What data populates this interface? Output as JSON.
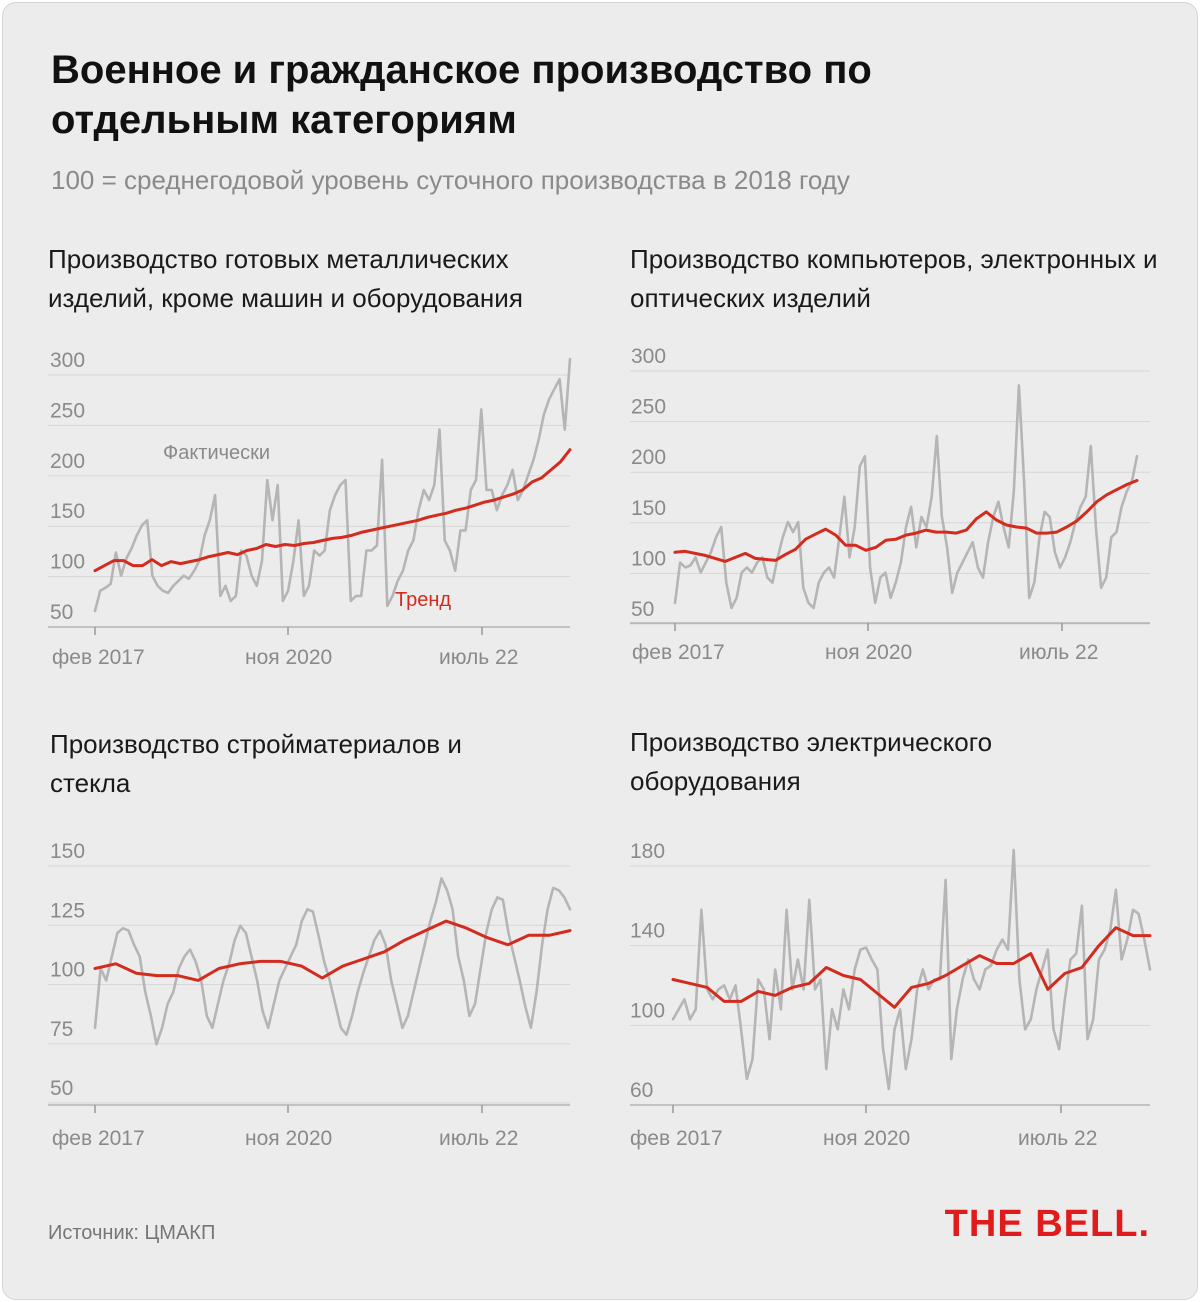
{
  "header": {
    "title": "Военное и гражданское производство по отдельным категориям",
    "subtitle": "100 = среднегодовой уровень суточного производства в 2018 году"
  },
  "source": "Источник: ЦМАКП",
  "logo": "THE BELL.",
  "colors": {
    "actual": "#b5b5b5",
    "trend": "#d32b1e",
    "grid": "#d6d6d6",
    "axis": "#999999",
    "tick": "#8a8a8a"
  },
  "chart_data": [
    {
      "type": "line",
      "title": "Производство готовых металлических изделий, кроме машин и оборудования",
      "x_ticks": [
        "фев 2017",
        "ноя 2020",
        "июль 22"
      ],
      "x_tick_index": [
        0,
        45,
        90
      ],
      "y_ticks": [
        50,
        100,
        150,
        200,
        250,
        300
      ],
      "ylim": [
        42,
        300
      ],
      "annotations": {
        "actual": "Фактически",
        "trend": "Тренд"
      },
      "series": [
        {
          "name": "Фактически",
          "values": [
            50,
            70,
            73,
            77,
            108,
            85,
            102,
            112,
            125,
            135,
            140,
            85,
            75,
            70,
            68,
            75,
            80,
            85,
            82,
            90,
            100,
            125,
            140,
            165,
            65,
            75,
            60,
            65,
            110,
            105,
            85,
            75,
            100,
            180,
            140,
            175,
            60,
            70,
            100,
            140,
            65,
            75,
            110,
            105,
            110,
            150,
            165,
            175,
            180,
            60,
            65,
            65,
            110,
            110,
            115,
            200,
            55,
            65,
            80,
            90,
            110,
            120,
            150,
            170,
            160,
            175,
            230,
            120,
            110,
            90,
            130,
            130,
            170,
            180,
            250,
            170,
            170,
            150,
            165,
            175,
            190,
            160,
            170,
            185,
            200,
            220,
            245,
            260,
            270,
            280,
            230,
            300
          ]
        },
        {
          "name": "Тренд",
          "values": [
            90,
            95,
            100,
            100,
            95,
            95,
            101,
            95,
            99,
            97,
            99,
            101,
            104,
            106,
            108,
            106,
            110,
            112,
            116,
            114,
            116,
            115,
            117,
            118,
            120,
            122,
            123,
            125,
            128,
            130,
            132,
            134,
            136,
            138,
            140,
            143,
            145,
            147,
            150,
            152,
            155,
            158,
            160,
            163,
            166,
            170,
            178,
            182,
            190,
            198,
            210
          ]
        }
      ]
    },
    {
      "type": "line",
      "title": "Производство компьютеров, электронных и оптических изделий",
      "x_ticks": [
        "фев 2017",
        "ноя 2020",
        "июль 22"
      ],
      "x_tick_index": [
        0,
        45,
        90
      ],
      "y_ticks": [
        50,
        100,
        150,
        200,
        250,
        300
      ],
      "ylim": [
        40,
        300
      ],
      "series": [
        {
          "name": "Фактически",
          "values": [
            55,
            95,
            90,
            92,
            100,
            85,
            95,
            105,
            120,
            130,
            75,
            50,
            60,
            85,
            90,
            85,
            95,
            100,
            80,
            75,
            100,
            120,
            135,
            125,
            135,
            70,
            55,
            50,
            75,
            85,
            90,
            80,
            120,
            160,
            100,
            130,
            190,
            200,
            90,
            55,
            80,
            85,
            60,
            75,
            95,
            130,
            150,
            110,
            140,
            130,
            160,
            220,
            140,
            110,
            65,
            85,
            95,
            105,
            115,
            90,
            80,
            115,
            140,
            155,
            130,
            110,
            165,
            270,
            175,
            60,
            75,
            120,
            145,
            140,
            105,
            90,
            100,
            115,
            135,
            150,
            160,
            210,
            130,
            70,
            80,
            120,
            125,
            150,
            165,
            175,
            200
          ]
        },
        {
          "name": "Тренд",
          "values": [
            105,
            106,
            104,
            102,
            99,
            96,
            100,
            104,
            99,
            98,
            97,
            103,
            108,
            118,
            123,
            128,
            122,
            112,
            112,
            107,
            110,
            117,
            118,
            122,
            124,
            127,
            125,
            125,
            124,
            127,
            138,
            145,
            137,
            132,
            130,
            129,
            124,
            124,
            125,
            130,
            136,
            145,
            155,
            162,
            167,
            172,
            176
          ]
        }
      ]
    },
    {
      "type": "line",
      "title": "Производство стройматериалов и стекла",
      "x_ticks": [
        "фев 2017",
        "ноя 2020",
        "июль 22"
      ],
      "x_tick_index": [
        0,
        45,
        90
      ],
      "y_ticks": [
        50,
        75,
        100,
        125,
        150
      ],
      "ylim": [
        42,
        150
      ],
      "series": [
        {
          "name": "Фактически",
          "values": [
            75,
            100,
            95,
            105,
            115,
            117,
            116,
            110,
            105,
            90,
            80,
            68,
            75,
            85,
            90,
            100,
            105,
            108,
            103,
            95,
            80,
            75,
            85,
            95,
            102,
            112,
            118,
            115,
            105,
            95,
            82,
            75,
            85,
            95,
            100,
            105,
            110,
            120,
            125,
            124,
            114,
            103,
            95,
            85,
            75,
            72,
            80,
            90,
            98,
            105,
            112,
            116,
            110,
            95,
            85,
            75,
            80,
            90,
            100,
            110,
            120,
            128,
            138,
            133,
            125,
            105,
            95,
            80,
            85,
            100,
            115,
            125,
            130,
            129,
            115,
            105,
            95,
            84,
            75,
            90,
            110,
            125,
            134,
            133,
            130,
            125
          ]
        },
        {
          "name": "Тренд",
          "values": [
            100,
            102,
            98,
            97,
            97,
            95,
            100,
            102,
            103,
            103,
            101,
            96,
            101,
            104,
            107,
            112,
            116,
            120,
            117,
            113,
            110,
            114,
            114,
            116
          ]
        }
      ]
    },
    {
      "type": "line",
      "title": "Производство электрического оборудования",
      "x_ticks": [
        "фев 2017",
        "ноя 2020",
        "июль 22"
      ],
      "x_tick_index": [
        0,
        45,
        90
      ],
      "y_ticks": [
        60,
        100,
        140,
        180
      ],
      "ylim": [
        56,
        180
      ],
      "series": [
        {
          "name": "Фактически",
          "values": [
            95,
            100,
            105,
            95,
            100,
            150,
            110,
            105,
            110,
            112,
            105,
            112,
            90,
            65,
            75,
            115,
            110,
            85,
            120,
            100,
            150,
            110,
            125,
            110,
            155,
            110,
            115,
            70,
            100,
            90,
            110,
            100,
            120,
            130,
            131,
            125,
            120,
            80,
            60,
            90,
            100,
            70,
            85,
            110,
            120,
            110,
            115,
            115,
            165,
            75,
            100,
            115,
            125,
            115,
            110,
            120,
            122,
            130,
            135,
            130,
            180,
            115,
            90,
            95,
            110,
            120,
            130,
            90,
            80,
            105,
            125,
            128,
            152,
            85,
            95,
            125,
            130,
            140,
            160,
            125,
            135,
            150,
            148,
            135,
            120
          ]
        },
        {
          "name": "Тренд",
          "values": [
            115,
            113,
            111,
            104,
            104,
            109,
            107,
            111,
            113,
            121,
            117,
            115,
            108,
            101,
            111,
            113,
            117,
            122,
            127,
            123,
            123,
            128,
            110,
            118,
            121,
            132,
            141,
            137,
            137
          ]
        }
      ]
    }
  ],
  "layout_note": ""
}
